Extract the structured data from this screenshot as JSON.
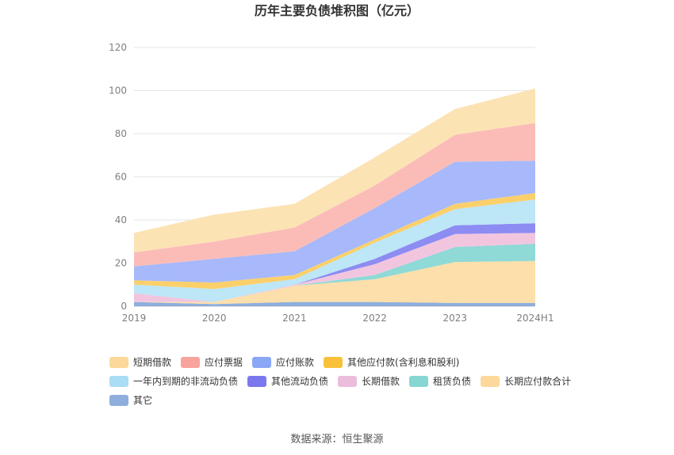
{
  "chart_data": {
    "type": "area",
    "stacked": true,
    "title": "历年主要负债堆积图（亿元）",
    "categories": [
      "2019",
      "2020",
      "2021",
      "2022",
      "2023",
      "2024H1"
    ],
    "ylim": [
      0,
      120
    ],
    "yticks": [
      0,
      20,
      40,
      60,
      80,
      100,
      120
    ],
    "grid": true,
    "series": [
      {
        "name": "其它",
        "color": "#8eaedd",
        "values": [
          2,
          1,
          2,
          2,
          1.5,
          1.5
        ]
      },
      {
        "name": "长期应付款合计",
        "color": "#fcdfaa",
        "values": [
          0,
          1,
          7.5,
          10.5,
          19,
          19.5
        ]
      },
      {
        "name": "租赁负债",
        "color": "#8fd9d7",
        "values": [
          0,
          0,
          0,
          2,
          7,
          8
        ]
      },
      {
        "name": "长期借款",
        "color": "#f2c5df",
        "values": [
          4,
          0,
          0.5,
          5,
          6,
          5
        ]
      },
      {
        "name": "其他流动负债",
        "color": "#8c8cf2",
        "values": [
          0,
          0,
          0,
          2.5,
          4,
          4.5
        ]
      },
      {
        "name": "一年内到期的非流动负债",
        "color": "#bde6f7",
        "values": [
          4,
          6,
          2.5,
          7.5,
          7.5,
          11
        ]
      },
      {
        "name": "其他应付款(含利息和股利)",
        "color": "#fbd06b",
        "values": [
          2,
          3,
          2,
          1.5,
          2.5,
          3
        ]
      },
      {
        "name": "应付账款",
        "color": "#a7b9fa",
        "values": [
          6.5,
          11,
          11,
          14.5,
          19.5,
          15
        ]
      },
      {
        "name": "应付票据",
        "color": "#fbbcb8",
        "values": [
          6.5,
          8,
          11,
          10.5,
          12.5,
          17.5
        ]
      },
      {
        "name": "短期借款",
        "color": "#fce3b4",
        "values": [
          9,
          12.5,
          11,
          13,
          12,
          16
        ]
      }
    ],
    "legend": {
      "position": "bottom-left",
      "items": [
        {
          "name": "短期借款",
          "color": "#fcd89a"
        },
        {
          "name": "应付票据",
          "color": "#f8a39b"
        },
        {
          "name": "应付账款",
          "color": "#8aa7f5"
        },
        {
          "name": "其他应付款(含利息和股利)",
          "color": "#fbc03a"
        },
        {
          "name": "一年内到期的非流动负债",
          "color": "#a9dcf5"
        },
        {
          "name": "其他流动负债",
          "color": "#7b78ee"
        },
        {
          "name": "长期借款",
          "color": "#ebbcdc"
        },
        {
          "name": "租赁负债",
          "color": "#86d6d3"
        },
        {
          "name": "长期应付款合计",
          "color": "#fcd89a"
        },
        {
          "name": "其它",
          "color": "#8eaedd"
        }
      ]
    }
  },
  "footer": {
    "source": "数据来源：恒生聚源"
  }
}
